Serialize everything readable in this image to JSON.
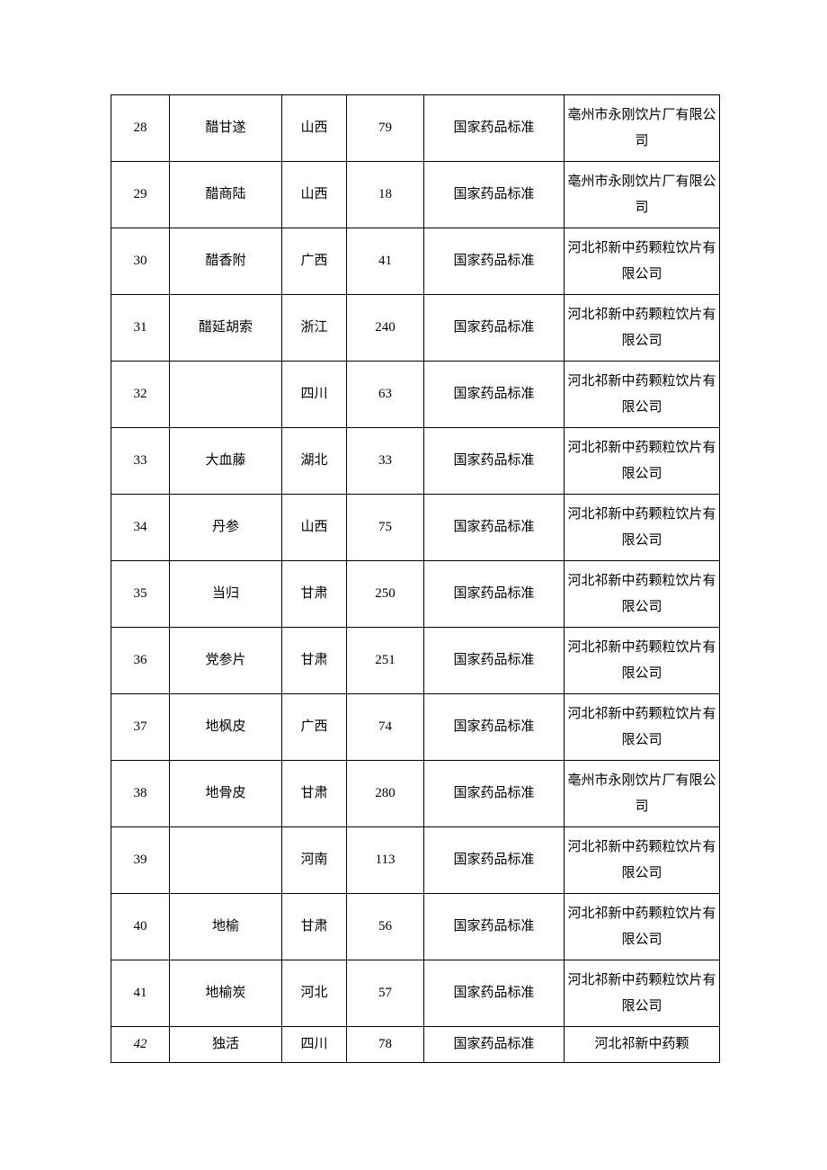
{
  "table": {
    "columns": [
      {
        "key": "num",
        "class": "col-num"
      },
      {
        "key": "name",
        "class": "col-name"
      },
      {
        "key": "prov",
        "class": "col-prov"
      },
      {
        "key": "qty",
        "class": "col-qty"
      },
      {
        "key": "std",
        "class": "col-std"
      },
      {
        "key": "mfr",
        "class": "col-mfr"
      }
    ],
    "rows": [
      {
        "num": "28",
        "name": "醋甘遂",
        "prov": "山西",
        "qty": "79",
        "std": "国家药品标准",
        "mfr": "亳州市永刚饮片厂有限公司",
        "row_class": "h-tall"
      },
      {
        "num": "29",
        "name": "醋商陆",
        "prov": "山西",
        "qty": "18",
        "std": "国家药品标准",
        "mfr": "亳州市永刚饮片厂有限公司",
        "row_class": "h-tall"
      },
      {
        "num": "30",
        "name": "醋香附",
        "prov": "广西",
        "qty": "41",
        "std": "国家药品标准",
        "mfr": "河北祁新中药颗粒饮片有限公司",
        "row_class": "h-tall"
      },
      {
        "num": "31",
        "name": "醋延胡索",
        "prov": "浙江",
        "qty": "240",
        "std": "国家药品标准",
        "mfr": "河北祁新中药颗粒饮片有限公司",
        "row_class": "h-tall"
      },
      {
        "num": "32",
        "name": "",
        "prov": "四川",
        "qty": "63",
        "std": "国家药品标准",
        "mfr": "河北祁新中药颗粒饮片有限公司",
        "row_class": "h-tall"
      },
      {
        "num": "33",
        "name": "大血藤",
        "prov": "湖北",
        "qty": "33",
        "std": "国家药品标准",
        "mfr": "河北祁新中药颗粒饮片有限公司",
        "row_class": "h-tall"
      },
      {
        "num": "34",
        "name": "丹参",
        "prov": "山西",
        "qty": "75",
        "std": "国家药品标准",
        "mfr": "河北祁新中药颗粒饮片有限公司",
        "row_class": "h-tall"
      },
      {
        "num": "35",
        "name": "当归",
        "prov": "甘肃",
        "qty": "250",
        "std": "国家药品标准",
        "mfr": "河北祁新中药颗粒饮片有限公司",
        "row_class": "h-tall"
      },
      {
        "num": "36",
        "name": "党参片",
        "prov": "甘肃",
        "qty": "251",
        "std": "国家药品标准",
        "mfr": "河北祁新中药颗粒饮片有限公司",
        "row_class": "h-tall"
      },
      {
        "num": "37",
        "name": "地枫皮",
        "prov": "广西",
        "qty": "74",
        "std": "国家药品标准",
        "mfr": "河北祁新中药颗粒饮片有限公司",
        "row_class": "h-tall"
      },
      {
        "num": "38",
        "name": "地骨皮",
        "prov": "甘肃",
        "qty": "280",
        "std": "国家药品标准",
        "mfr": "亳州市永刚饮片厂有限公司",
        "row_class": "h-tall"
      },
      {
        "num": "39",
        "name": "",
        "prov": "河南",
        "qty": "113",
        "std": "国家药品标准",
        "mfr": "河北祁新中药颗粒饮片有限公司",
        "row_class": "h-tall"
      },
      {
        "num": "40",
        "name": "地榆",
        "prov": "甘肃",
        "qty": "56",
        "std": "国家药品标准",
        "mfr": "河北祁新中药颗粒饮片有限公司",
        "row_class": "h-tall"
      },
      {
        "num": "41",
        "name": "地榆炭",
        "prov": "河北",
        "qty": "57",
        "std": "国家药品标准",
        "mfr": "河北祁新中药颗粒饮片有限公司",
        "row_class": "h-tall"
      },
      {
        "num": "42",
        "name": "独活",
        "prov": "四川",
        "qty": "78",
        "std": "国家药品标准",
        "mfr": "河北祁新中药颗",
        "row_class": "h-short",
        "num_class": "italic"
      }
    ]
  }
}
